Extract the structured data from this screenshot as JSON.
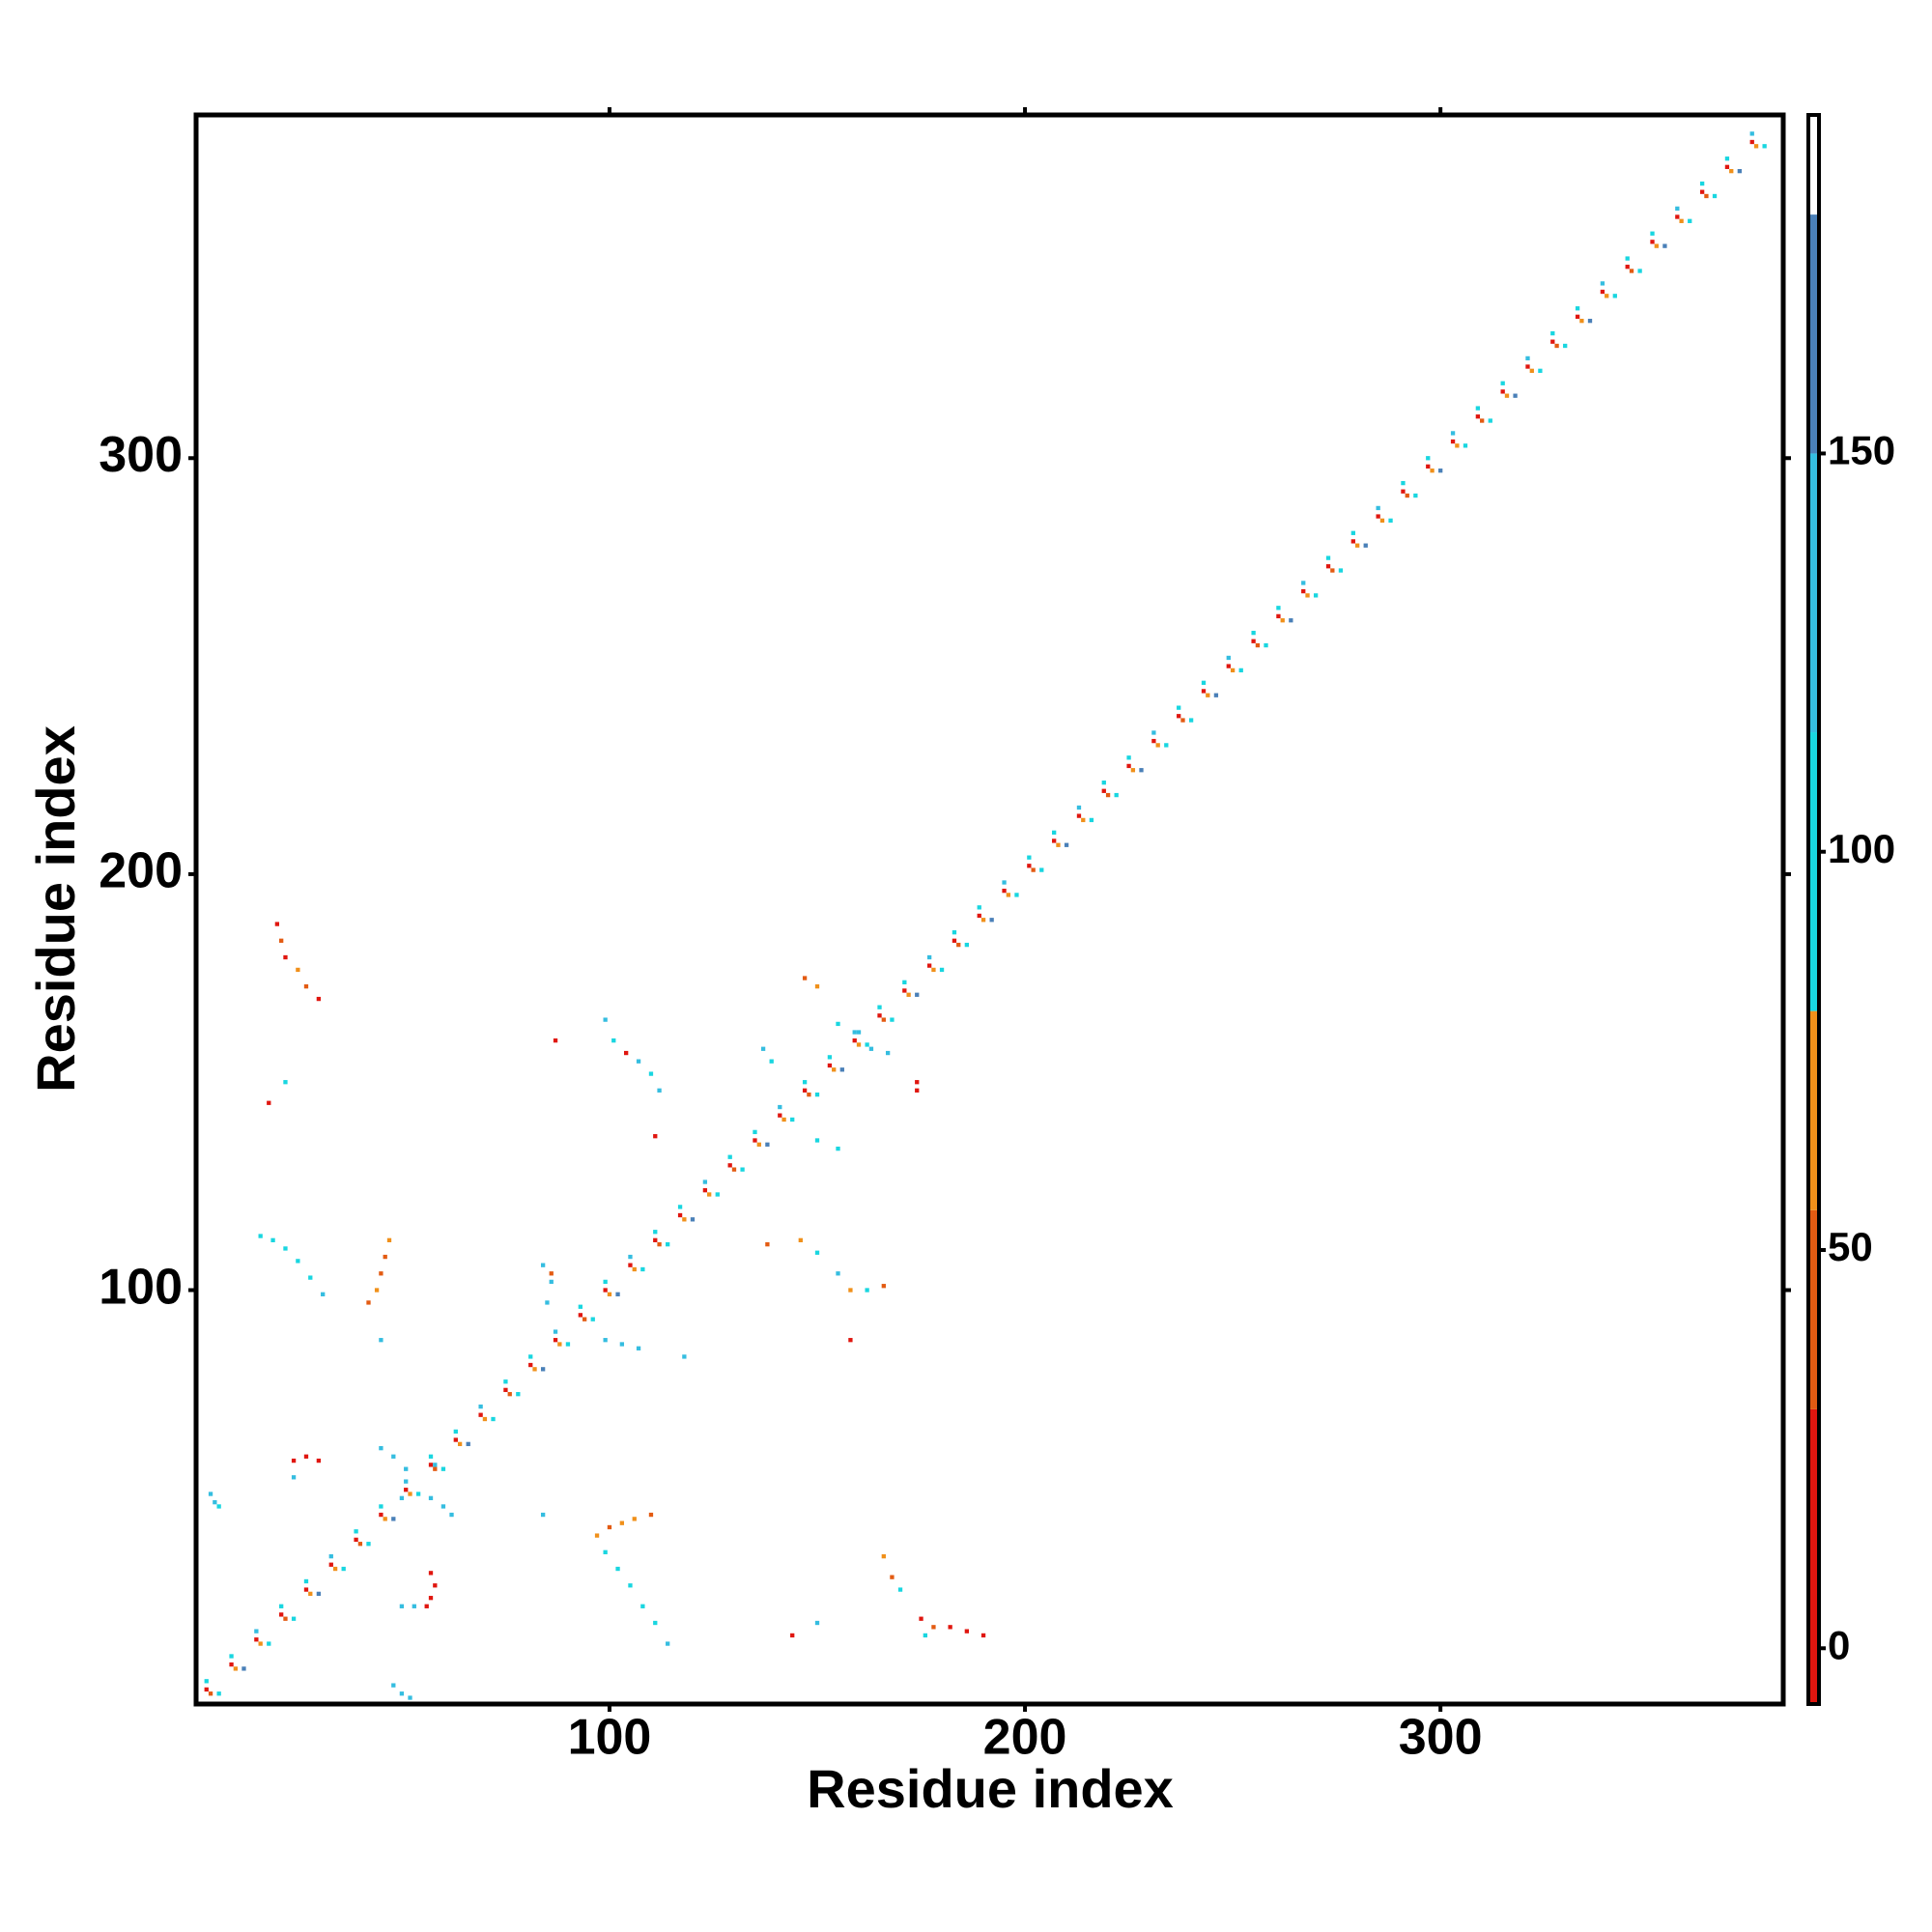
{
  "chart_data": {
    "type": "heatmap",
    "x_label": "Residue index",
    "y_label": "Residue index",
    "xlim": [
      0.5,
      382.5
    ],
    "ylim": [
      0.5,
      382.5
    ],
    "xticks": [
      100,
      200,
      300
    ],
    "yticks": [
      100,
      200,
      300
    ],
    "colorbar": {
      "lim": [
        -7,
        192.5
      ],
      "ticks": [
        0,
        50,
        100,
        150
      ],
      "bounds": [
        -7,
        30,
        55,
        80,
        115,
        150,
        180,
        192.5
      ],
      "colors": [
        "#e0160f",
        "#e35b12",
        "#f0901a",
        "#19d6e0",
        "#35bde0",
        "#4a80b8",
        "#ffffff"
      ]
    },
    "cells": [
      [
        3,
        4,
        5
      ],
      [
        4,
        3,
        40
      ],
      [
        3,
        6,
        95
      ],
      [
        6,
        3,
        115
      ],
      [
        9,
        10,
        12
      ],
      [
        10,
        9,
        60
      ],
      [
        9,
        12,
        105
      ],
      [
        12,
        9,
        160
      ],
      [
        15,
        16,
        20
      ],
      [
        16,
        15,
        70
      ],
      [
        15,
        18,
        140
      ],
      [
        18,
        15,
        100
      ],
      [
        21,
        22,
        5
      ],
      [
        22,
        21,
        40
      ],
      [
        21,
        24,
        95
      ],
      [
        24,
        21,
        115
      ],
      [
        27,
        28,
        12
      ],
      [
        28,
        27,
        60
      ],
      [
        27,
        30,
        105
      ],
      [
        30,
        27,
        160
      ],
      [
        33,
        34,
        20
      ],
      [
        34,
        33,
        70
      ],
      [
        33,
        36,
        140
      ],
      [
        36,
        33,
        100
      ],
      [
        39,
        40,
        5
      ],
      [
        40,
        39,
        40
      ],
      [
        39,
        42,
        95
      ],
      [
        42,
        39,
        115
      ],
      [
        45,
        46,
        12
      ],
      [
        46,
        45,
        60
      ],
      [
        45,
        48,
        105
      ],
      [
        48,
        45,
        160
      ],
      [
        51,
        52,
        20
      ],
      [
        52,
        51,
        70
      ],
      [
        51,
        54,
        140
      ],
      [
        54,
        51,
        100
      ],
      [
        57,
        58,
        5
      ],
      [
        58,
        57,
        40
      ],
      [
        57,
        60,
        95
      ],
      [
        60,
        57,
        115
      ],
      [
        63,
        64,
        12
      ],
      [
        64,
        63,
        60
      ],
      [
        63,
        66,
        105
      ],
      [
        66,
        63,
        160
      ],
      [
        69,
        70,
        20
      ],
      [
        70,
        69,
        70
      ],
      [
        69,
        72,
        140
      ],
      [
        72,
        69,
        100
      ],
      [
        75,
        76,
        5
      ],
      [
        76,
        75,
        40
      ],
      [
        75,
        78,
        95
      ],
      [
        78,
        75,
        115
      ],
      [
        81,
        82,
        12
      ],
      [
        82,
        81,
        60
      ],
      [
        81,
        84,
        105
      ],
      [
        84,
        81,
        160
      ],
      [
        87,
        88,
        20
      ],
      [
        88,
        87,
        70
      ],
      [
        87,
        90,
        140
      ],
      [
        90,
        87,
        100
      ],
      [
        93,
        94,
        5
      ],
      [
        94,
        93,
        40
      ],
      [
        93,
        96,
        95
      ],
      [
        96,
        93,
        115
      ],
      [
        99,
        100,
        12
      ],
      [
        100,
        99,
        60
      ],
      [
        99,
        102,
        105
      ],
      [
        102,
        99,
        160
      ],
      [
        105,
        106,
        20
      ],
      [
        106,
        105,
        70
      ],
      [
        105,
        108,
        140
      ],
      [
        108,
        105,
        100
      ],
      [
        111,
        112,
        5
      ],
      [
        112,
        111,
        40
      ],
      [
        111,
        114,
        95
      ],
      [
        114,
        111,
        115
      ],
      [
        117,
        118,
        12
      ],
      [
        118,
        117,
        60
      ],
      [
        117,
        120,
        105
      ],
      [
        120,
        117,
        160
      ],
      [
        123,
        124,
        20
      ],
      [
        124,
        123,
        70
      ],
      [
        123,
        126,
        140
      ],
      [
        126,
        123,
        100
      ],
      [
        129,
        130,
        5
      ],
      [
        130,
        129,
        40
      ],
      [
        129,
        132,
        95
      ],
      [
        132,
        129,
        115
      ],
      [
        135,
        136,
        12
      ],
      [
        136,
        135,
        60
      ],
      [
        135,
        138,
        105
      ],
      [
        138,
        135,
        160
      ],
      [
        141,
        142,
        20
      ],
      [
        142,
        141,
        70
      ],
      [
        141,
        144,
        140
      ],
      [
        144,
        141,
        100
      ],
      [
        147,
        148,
        5
      ],
      [
        148,
        147,
        40
      ],
      [
        147,
        150,
        95
      ],
      [
        150,
        147,
        115
      ],
      [
        153,
        154,
        12
      ],
      [
        154,
        153,
        60
      ],
      [
        153,
        156,
        105
      ],
      [
        156,
        153,
        160
      ],
      [
        159,
        160,
        20
      ],
      [
        160,
        159,
        70
      ],
      [
        159,
        162,
        140
      ],
      [
        162,
        159,
        100
      ],
      [
        165,
        166,
        5
      ],
      [
        166,
        165,
        40
      ],
      [
        165,
        168,
        95
      ],
      [
        168,
        165,
        115
      ],
      [
        171,
        172,
        12
      ],
      [
        172,
        171,
        60
      ],
      [
        171,
        174,
        105
      ],
      [
        174,
        171,
        160
      ],
      [
        177,
        178,
        20
      ],
      [
        178,
        177,
        70
      ],
      [
        177,
        180,
        140
      ],
      [
        180,
        177,
        100
      ],
      [
        183,
        184,
        5
      ],
      [
        184,
        183,
        40
      ],
      [
        183,
        186,
        95
      ],
      [
        186,
        183,
        115
      ],
      [
        189,
        190,
        12
      ],
      [
        190,
        189,
        60
      ],
      [
        189,
        192,
        105
      ],
      [
        192,
        189,
        160
      ],
      [
        195,
        196,
        20
      ],
      [
        196,
        195,
        70
      ],
      [
        195,
        198,
        140
      ],
      [
        198,
        195,
        100
      ],
      [
        201,
        202,
        5
      ],
      [
        202,
        201,
        40
      ],
      [
        201,
        204,
        95
      ],
      [
        204,
        201,
        115
      ],
      [
        207,
        208,
        12
      ],
      [
        208,
        207,
        60
      ],
      [
        207,
        210,
        105
      ],
      [
        210,
        207,
        160
      ],
      [
        213,
        214,
        20
      ],
      [
        214,
        213,
        70
      ],
      [
        213,
        216,
        140
      ],
      [
        216,
        213,
        100
      ],
      [
        219,
        220,
        5
      ],
      [
        220,
        219,
        40
      ],
      [
        219,
        222,
        95
      ],
      [
        222,
        219,
        115
      ],
      [
        225,
        226,
        12
      ],
      [
        226,
        225,
        60
      ],
      [
        225,
        228,
        105
      ],
      [
        228,
        225,
        160
      ],
      [
        231,
        232,
        20
      ],
      [
        232,
        231,
        70
      ],
      [
        231,
        234,
        140
      ],
      [
        234,
        231,
        100
      ],
      [
        237,
        238,
        5
      ],
      [
        238,
        237,
        40
      ],
      [
        237,
        240,
        95
      ],
      [
        240,
        237,
        115
      ],
      [
        243,
        244,
        12
      ],
      [
        244,
        243,
        60
      ],
      [
        243,
        246,
        105
      ],
      [
        246,
        243,
        160
      ],
      [
        249,
        250,
        20
      ],
      [
        250,
        249,
        70
      ],
      [
        249,
        252,
        140
      ],
      [
        252,
        249,
        100
      ],
      [
        255,
        256,
        5
      ],
      [
        256,
        255,
        40
      ],
      [
        255,
        258,
        95
      ],
      [
        258,
        255,
        115
      ],
      [
        261,
        262,
        12
      ],
      [
        262,
        261,
        60
      ],
      [
        261,
        264,
        105
      ],
      [
        264,
        261,
        160
      ],
      [
        267,
        268,
        20
      ],
      [
        268,
        267,
        70
      ],
      [
        267,
        270,
        140
      ],
      [
        270,
        267,
        100
      ],
      [
        273,
        274,
        5
      ],
      [
        274,
        273,
        40
      ],
      [
        273,
        276,
        95
      ],
      [
        276,
        273,
        115
      ],
      [
        279,
        280,
        12
      ],
      [
        280,
        279,
        60
      ],
      [
        279,
        282,
        105
      ],
      [
        282,
        279,
        160
      ],
      [
        285,
        286,
        20
      ],
      [
        286,
        285,
        70
      ],
      [
        285,
        288,
        140
      ],
      [
        288,
        285,
        100
      ],
      [
        291,
        292,
        5
      ],
      [
        292,
        291,
        40
      ],
      [
        291,
        294,
        95
      ],
      [
        294,
        291,
        115
      ],
      [
        297,
        298,
        12
      ],
      [
        298,
        297,
        60
      ],
      [
        297,
        300,
        105
      ],
      [
        300,
        297,
        160
      ],
      [
        303,
        304,
        20
      ],
      [
        304,
        303,
        70
      ],
      [
        303,
        306,
        140
      ],
      [
        306,
        303,
        100
      ],
      [
        309,
        310,
        5
      ],
      [
        310,
        309,
        40
      ],
      [
        309,
        312,
        95
      ],
      [
        312,
        309,
        115
      ],
      [
        315,
        316,
        12
      ],
      [
        316,
        315,
        60
      ],
      [
        315,
        318,
        105
      ],
      [
        318,
        315,
        160
      ],
      [
        321,
        322,
        20
      ],
      [
        322,
        321,
        70
      ],
      [
        321,
        324,
        140
      ],
      [
        324,
        321,
        100
      ],
      [
        327,
        328,
        5
      ],
      [
        328,
        327,
        40
      ],
      [
        327,
        330,
        95
      ],
      [
        330,
        327,
        115
      ],
      [
        333,
        334,
        12
      ],
      [
        334,
        333,
        60
      ],
      [
        333,
        336,
        105
      ],
      [
        336,
        333,
        160
      ],
      [
        339,
        340,
        20
      ],
      [
        340,
        339,
        70
      ],
      [
        339,
        342,
        140
      ],
      [
        342,
        339,
        100
      ],
      [
        345,
        346,
        5
      ],
      [
        346,
        345,
        40
      ],
      [
        345,
        348,
        95
      ],
      [
        348,
        345,
        115
      ],
      [
        351,
        352,
        12
      ],
      [
        352,
        351,
        60
      ],
      [
        351,
        354,
        105
      ],
      [
        354,
        351,
        160
      ],
      [
        357,
        358,
        20
      ],
      [
        358,
        357,
        70
      ],
      [
        357,
        360,
        140
      ],
      [
        360,
        357,
        100
      ],
      [
        363,
        364,
        5
      ],
      [
        364,
        363,
        40
      ],
      [
        363,
        366,
        95
      ],
      [
        366,
        363,
        115
      ],
      [
        369,
        370,
        12
      ],
      [
        370,
        369,
        60
      ],
      [
        369,
        372,
        105
      ],
      [
        372,
        369,
        160
      ],
      [
        375,
        376,
        20
      ],
      [
        376,
        375,
        70
      ],
      [
        375,
        378,
        140
      ],
      [
        378,
        375,
        100
      ],
      [
        20,
        188,
        5
      ],
      [
        21,
        184,
        50
      ],
      [
        22,
        180,
        10
      ],
      [
        25,
        177,
        60
      ],
      [
        27,
        173,
        45
      ],
      [
        30,
        170,
        20
      ],
      [
        18,
        145,
        8
      ],
      [
        22,
        150,
        100
      ],
      [
        16,
        113,
        100
      ],
      [
        19,
        112,
        95
      ],
      [
        22,
        110,
        110
      ],
      [
        25,
        107,
        100
      ],
      [
        28,
        103,
        95
      ],
      [
        31,
        99,
        120
      ],
      [
        47,
        112,
        60
      ],
      [
        46,
        108,
        50
      ],
      [
        45,
        104,
        55
      ],
      [
        44,
        100,
        65
      ],
      [
        42,
        97,
        45
      ],
      [
        45,
        88,
        140
      ],
      [
        4,
        51,
        130
      ],
      [
        5,
        49,
        120
      ],
      [
        6,
        48,
        110
      ],
      [
        24,
        59,
        10
      ],
      [
        27,
        60,
        20
      ],
      [
        30,
        59,
        5
      ],
      [
        24,
        55,
        150
      ],
      [
        45,
        62,
        140
      ],
      [
        48,
        60,
        150
      ],
      [
        51,
        57,
        130
      ],
      [
        57,
        50,
        140
      ],
      [
        60,
        48,
        150
      ],
      [
        62,
        46,
        120
      ],
      [
        50,
        50,
        130
      ],
      [
        58,
        58,
        125
      ],
      [
        57,
        32,
        10
      ],
      [
        58,
        29,
        5
      ],
      [
        57,
        26,
        15
      ],
      [
        56,
        24,
        20
      ],
      [
        50,
        24,
        150
      ],
      [
        53,
        24,
        140
      ],
      [
        48,
        5,
        150
      ],
      [
        50,
        3,
        140
      ],
      [
        52,
        2,
        145
      ],
      [
        84,
        46,
        140
      ],
      [
        97,
        41,
        60
      ],
      [
        100,
        43,
        50
      ],
      [
        103,
        44,
        70
      ],
      [
        106,
        45,
        65
      ],
      [
        110,
        46,
        55
      ],
      [
        99,
        37,
        100
      ],
      [
        102,
        33,
        95
      ],
      [
        105,
        29,
        105
      ],
      [
        108,
        24,
        100
      ],
      [
        111,
        20,
        110
      ],
      [
        114,
        15,
        120
      ],
      [
        84,
        106,
        140
      ],
      [
        86,
        102,
        130
      ],
      [
        85,
        97,
        150
      ],
      [
        86,
        104,
        40
      ],
      [
        99,
        88,
        130
      ],
      [
        103,
        87,
        140
      ],
      [
        107,
        86,
        150
      ],
      [
        118,
        84,
        150
      ],
      [
        99,
        165,
        130
      ],
      [
        101,
        160,
        100
      ],
      [
        104,
        157,
        20
      ],
      [
        107,
        155,
        140
      ],
      [
        110,
        152,
        100
      ],
      [
        112,
        148,
        120
      ],
      [
        87,
        160,
        15
      ],
      [
        111,
        137,
        5
      ],
      [
        138,
        111,
        50
      ],
      [
        146,
        112,
        60
      ],
      [
        150,
        109,
        100
      ],
      [
        155,
        104,
        130
      ],
      [
        158,
        100,
        60
      ],
      [
        162,
        100,
        100
      ],
      [
        166,
        101,
        50
      ],
      [
        158,
        88,
        5
      ],
      [
        137,
        158,
        130
      ],
      [
        139,
        155,
        100
      ],
      [
        147,
        175,
        50
      ],
      [
        150,
        173,
        60
      ],
      [
        155,
        164,
        100
      ],
      [
        160,
        162,
        130
      ],
      [
        163,
        158,
        150
      ],
      [
        167,
        157,
        120
      ],
      [
        174,
        150,
        15
      ],
      [
        174,
        148,
        5
      ],
      [
        150,
        136,
        110
      ],
      [
        155,
        134,
        100
      ],
      [
        166,
        36,
        60
      ],
      [
        168,
        31,
        45
      ],
      [
        170,
        28,
        100
      ],
      [
        175,
        21,
        10
      ],
      [
        178,
        19,
        50
      ],
      [
        182,
        19,
        15
      ],
      [
        186,
        18,
        5
      ],
      [
        190,
        17,
        20
      ],
      [
        176,
        17,
        110
      ],
      [
        144,
        17,
        5
      ],
      [
        150,
        20,
        140
      ]
    ]
  }
}
